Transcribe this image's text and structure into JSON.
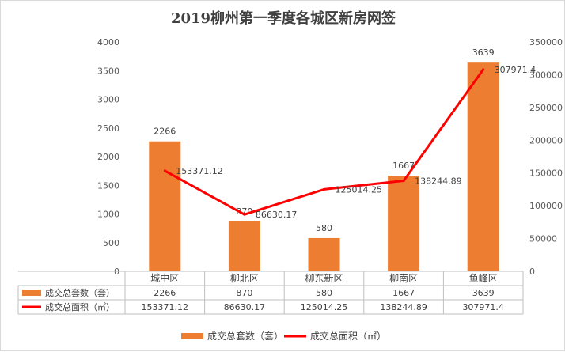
{
  "chart_data": {
    "type": "bar",
    "title": "2019柳州第一季度各城区新房网签",
    "categories": [
      "城中区",
      "柳北区",
      "柳东新区",
      "柳南区",
      "鱼峰区"
    ],
    "series": [
      {
        "name": "成交总套数（套）",
        "type": "bar",
        "axis": "left",
        "color": "#ED7D31",
        "values": [
          2266,
          870,
          580,
          1667,
          3639
        ],
        "labels": [
          "2266",
          "870",
          "580",
          "1667",
          "3639"
        ]
      },
      {
        "name": "成交总面积（㎡）",
        "type": "line",
        "axis": "right",
        "color": "#FF0000",
        "values": [
          153371.12,
          86630.17,
          125014.25,
          138244.89,
          307971.4
        ],
        "labels": [
          "153371.12",
          "86630.17",
          "125014.25",
          "138244.89",
          "307971.4"
        ]
      }
    ],
    "y_left": {
      "ylim": [
        0,
        4000
      ],
      "ticks": [
        "0",
        "500",
        "1000",
        "1500",
        "2000",
        "2500",
        "3000",
        "3500",
        "4000"
      ]
    },
    "y_right": {
      "ylim": [
        0,
        350000
      ],
      "ticks": [
        "0",
        "50000",
        "100000",
        "150000",
        "200000",
        "250000",
        "300000",
        "350000"
      ]
    },
    "grid": false,
    "data_table": true,
    "legend_position": "bottom"
  }
}
